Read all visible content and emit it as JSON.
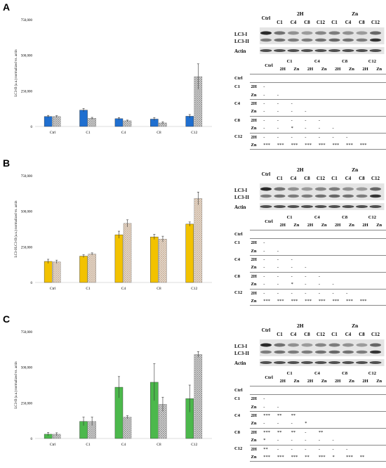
{
  "figure": {
    "panels": [
      {
        "label": "A",
        "blot": {
          "top_groups": [
            "2H",
            "Zn"
          ],
          "lane_labels": [
            "Ctrl",
            "C1",
            "C4",
            "C8",
            "C12",
            "C1",
            "C4",
            "C8",
            "C12"
          ],
          "row_labels": [
            "LC3-I",
            "LC3-II",
            "Actin"
          ]
        },
        "table": {
          "group_headers": [
            "C1",
            "C4",
            "C8",
            "C12"
          ],
          "sub_headers": [
            "2H",
            "Zn",
            "2H",
            "Zn",
            "2H",
            "Zn",
            "2H",
            "Zn"
          ],
          "rows": [
            {
              "label": "Ctrl",
              "sub": "",
              "cells": []
            },
            {
              "label": "C1",
              "sub": "2H",
              "cells": [
                "-"
              ]
            },
            {
              "label": "",
              "sub": "Zn",
              "cells": [
                "-",
                "-"
              ]
            },
            {
              "label": "C4",
              "sub": "2H",
              "cells": [
                "-",
                "-",
                "-"
              ]
            },
            {
              "label": "",
              "sub": "Zn",
              "cells": [
                "-",
                "-",
                "-",
                "-"
              ]
            },
            {
              "label": "C8",
              "sub": "2H",
              "cells": [
                "-",
                "-",
                "-",
                "-",
                "-"
              ]
            },
            {
              "label": "",
              "sub": "Zn",
              "cells": [
                "-",
                "-",
                "*",
                "-",
                "-",
                "-"
              ]
            },
            {
              "label": "C12",
              "sub": "2H",
              "cells": [
                "-",
                "-",
                "-",
                "-",
                "-",
                "-",
                "-"
              ]
            },
            {
              "label": "",
              "sub": "Zn",
              "cells": [
                "***",
                "***",
                "***",
                "***",
                "***",
                "***",
                "***",
                "***"
              ]
            }
          ]
        },
        "chart_data": {
          "type": "bar",
          "ylabel": "LC3-II (a.u.) normalized vs. actin",
          "yticks": [
            "0",
            "250,000",
            "500,000",
            "750,000"
          ],
          "ylim": [
            0,
            750000
          ],
          "categories": [
            "Ctrl",
            "C1",
            "C4",
            "C8",
            "C12"
          ],
          "series": [
            {
              "values": [
                70000,
                115000,
                55000,
                52000,
                72000
              ],
              "errors": [
                8000,
                12000,
                8000,
                10000,
                12000
              ],
              "color": "#1f6fd0",
              "pattern": "solid"
            },
            {
              "values": [
                70000,
                58000,
                40000,
                25000,
                350000
              ],
              "errors": [
                6000,
                6000,
                5000,
                8000,
                90000
              ],
              "color": "#8a8a8a",
              "pattern": "crosshatch"
            }
          ]
        }
      },
      {
        "label": "B",
        "blot": {
          "top_groups": [
            "2H",
            "Zn"
          ],
          "lane_labels": [
            "Ctrl",
            "C1",
            "C4",
            "C8",
            "C12",
            "C1",
            "C4",
            "C8",
            "C12"
          ],
          "row_labels": [
            "LC3-I",
            "LC3-II",
            "Actin"
          ]
        },
        "table": {
          "group_headers": [
            "C1",
            "C4",
            "C8",
            "C12"
          ],
          "sub_headers": [
            "2H",
            "Zn",
            "2H",
            "Zn",
            "2H",
            "Zn",
            "2H",
            "Zn"
          ],
          "rows": [
            {
              "label": "Ctrl",
              "sub": "",
              "cells": []
            },
            {
              "label": "C1",
              "sub": "2H",
              "cells": [
                "-"
              ]
            },
            {
              "label": "",
              "sub": "Zn",
              "cells": [
                "-",
                "-"
              ]
            },
            {
              "label": "C4",
              "sub": "2H",
              "cells": [
                "-",
                "-",
                "-"
              ]
            },
            {
              "label": "",
              "sub": "Zn",
              "cells": [
                "-",
                "-",
                "-",
                "-"
              ]
            },
            {
              "label": "C8",
              "sub": "2H",
              "cells": [
                "-",
                "-",
                "-",
                "-",
                "-"
              ]
            },
            {
              "label": "",
              "sub": "Zn",
              "cells": [
                "-",
                "-",
                "*",
                "-",
                "-",
                "-"
              ]
            },
            {
              "label": "C12",
              "sub": "2H",
              "cells": [
                "-",
                "-",
                "-",
                "-",
                "-",
                "-",
                "-"
              ]
            },
            {
              "label": "",
              "sub": "Zn",
              "cells": [
                "***",
                "***",
                "***",
                "***",
                "***",
                "***",
                "***",
                "***"
              ]
            }
          ]
        },
        "chart_data": {
          "type": "bar",
          "ylabel": "LC3-I/LC3-II (a.u.) normalized vs. actin",
          "yticks": [
            "0",
            "250,000",
            "500,000",
            "750,000"
          ],
          "ylim": [
            0,
            750000
          ],
          "categories": [
            "Ctrl",
            "C1",
            "C4",
            "C8",
            "C12"
          ],
          "series": [
            {
              "values": [
                148000,
                185000,
                335000,
                320000,
                410000
              ],
              "errors": [
                15000,
                10000,
                25000,
                18000,
                15000
              ],
              "color": "#f2c200",
              "pattern": "solid"
            },
            {
              "values": [
                145000,
                200000,
                415000,
                305000,
                590000
              ],
              "errors": [
                12000,
                8000,
                25000,
                20000,
                45000
              ],
              "color": "#c9a98a",
              "pattern": "crosshatch"
            }
          ]
        }
      },
      {
        "label": "C",
        "blot": {
          "top_groups": [
            "2H",
            "Zn"
          ],
          "lane_labels": [
            "Ctrl",
            "C1",
            "C4",
            "C8",
            "C12",
            "C1",
            "C4",
            "C8",
            "C12"
          ],
          "row_labels": [
            "LC3-I",
            "LC3-II",
            "Actin"
          ]
        },
        "table": {
          "group_headers": [
            "C1",
            "C4",
            "C8",
            "C12"
          ],
          "sub_headers": [
            "2H",
            "Zn",
            "2H",
            "Zn",
            "2H",
            "Zn",
            "2H",
            "Zn"
          ],
          "rows": [
            {
              "label": "Ctrl",
              "sub": "",
              "cells": []
            },
            {
              "label": "C1",
              "sub": "2H",
              "cells": [
                "-"
              ]
            },
            {
              "label": "",
              "sub": "Zn",
              "cells": [
                "-",
                "-"
              ]
            },
            {
              "label": "C4",
              "sub": "2H",
              "cells": [
                "***",
                "**",
                "**"
              ]
            },
            {
              "label": "",
              "sub": "Zn",
              "cells": [
                "-",
                "-",
                "-",
                "*"
              ]
            },
            {
              "label": "C8",
              "sub": "2H",
              "cells": [
                "***",
                "**",
                "**",
                "-",
                "**"
              ]
            },
            {
              "label": "",
              "sub": "Zn",
              "cells": [
                "*",
                "-",
                "-",
                "-",
                "-",
                "-"
              ]
            },
            {
              "label": "C12",
              "sub": "2H",
              "cells": [
                "**",
                "-",
                "-",
                "-",
                "-",
                "-",
                "-"
              ]
            },
            {
              "label": "",
              "sub": "Zn",
              "cells": [
                "***",
                "***",
                "***",
                "**",
                "***",
                "*",
                "***",
                "**"
              ]
            }
          ]
        },
        "chart_data": {
          "type": "bar",
          "ylabel": "LC3-II (a.u.) normalized vs. actin",
          "yticks": [
            "0",
            "250,000",
            "500,000",
            "750,000"
          ],
          "ylim": [
            0,
            750000
          ],
          "categories": [
            "Ctrl",
            "C1",
            "C4",
            "C8",
            "C12"
          ],
          "series": [
            {
              "values": [
                30000,
                120000,
                360000,
                395000,
                280000
              ],
              "errors": [
                12000,
                30000,
                75000,
                130000,
                95000
              ],
              "color": "#4cb84c",
              "pattern": "solid"
            },
            {
              "values": [
                30000,
                120000,
                150000,
                240000,
                590000
              ],
              "errors": [
                10000,
                30000,
                10000,
                50000,
                20000
              ],
              "color": "#8a8a8a",
              "pattern": "crosshatch"
            }
          ]
        }
      }
    ]
  }
}
